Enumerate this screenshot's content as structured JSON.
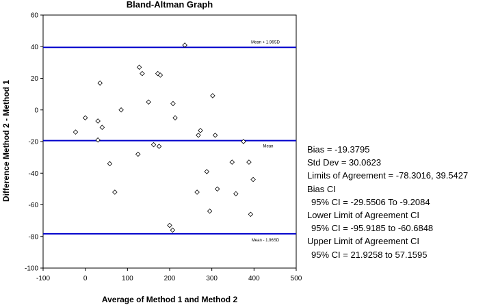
{
  "chart_data": {
    "type": "scatter",
    "title": "Bland-Altman Graph",
    "xlabel": "Average of Method 1 and Method 2",
    "ylabel": "Difference Method 2 - Method 1",
    "xlim": [
      -100,
      500
    ],
    "ylim": [
      -100,
      60
    ],
    "x_ticks": [
      -100,
      0,
      100,
      200,
      300,
      400,
      500
    ],
    "y_ticks": [
      -100,
      -80,
      -60,
      -40,
      -20,
      0,
      20,
      40,
      60
    ],
    "grid": false,
    "marker": "diamond",
    "colors": {
      "lines": "#0000cc",
      "points": "#ffffff",
      "point_stroke": "#000000"
    },
    "reference_lines": [
      {
        "label": "Mean + 1.96SD",
        "y": 39.5427
      },
      {
        "label": "Mean",
        "y": -19.3795
      },
      {
        "label": "Mean - 1.96SD",
        "y": -78.3016
      }
    ],
    "points": [
      {
        "x": -23,
        "y": -14
      },
      {
        "x": 0,
        "y": -5
      },
      {
        "x": 30,
        "y": -7
      },
      {
        "x": 30,
        "y": -19
      },
      {
        "x": 35,
        "y": 17
      },
      {
        "x": 40,
        "y": -11
      },
      {
        "x": 58,
        "y": -34
      },
      {
        "x": 70,
        "y": -52
      },
      {
        "x": 85,
        "y": 0
      },
      {
        "x": 125,
        "y": -28
      },
      {
        "x": 128,
        "y": 27
      },
      {
        "x": 135,
        "y": 23
      },
      {
        "x": 150,
        "y": 5
      },
      {
        "x": 162,
        "y": -22
      },
      {
        "x": 172,
        "y": 23
      },
      {
        "x": 175,
        "y": -23
      },
      {
        "x": 178,
        "y": 22
      },
      {
        "x": 200,
        "y": -73
      },
      {
        "x": 207,
        "y": -76
      },
      {
        "x": 208,
        "y": 4
      },
      {
        "x": 213,
        "y": -5
      },
      {
        "x": 236,
        "y": 41
      },
      {
        "x": 265,
        "y": -52
      },
      {
        "x": 268,
        "y": -16
      },
      {
        "x": 273,
        "y": -13
      },
      {
        "x": 288,
        "y": -39
      },
      {
        "x": 295,
        "y": -64
      },
      {
        "x": 302,
        "y": 9
      },
      {
        "x": 308,
        "y": -16
      },
      {
        "x": 313,
        "y": -50
      },
      {
        "x": 348,
        "y": -33
      },
      {
        "x": 357,
        "y": -53
      },
      {
        "x": 375,
        "y": -20
      },
      {
        "x": 388,
        "y": -33
      },
      {
        "x": 392,
        "y": -66
      },
      {
        "x": 398,
        "y": -44
      }
    ]
  },
  "stats": {
    "bias": "Bias = -19.3795",
    "std_dev": "Std Dev = 30.0623",
    "limits": "Limits of Agreement = -78.3016, 39.5427",
    "bias_ci_label": "Bias CI",
    "bias_ci": "95% CI = -29.5506 To -9.2084",
    "lower_ci_label": "Lower Limit of Agreement CI",
    "lower_ci": "95% CI = -95.9185 to -60.6848",
    "upper_ci_label": "Upper Limit of Agreement CI",
    "upper_ci": "95% CI = 21.9258 to 57.1595"
  }
}
